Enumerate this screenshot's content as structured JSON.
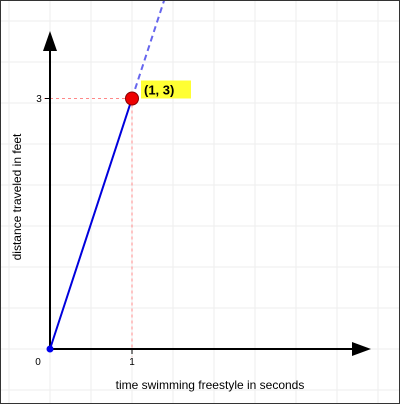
{
  "chart_data": {
    "type": "line",
    "xlabel": "time swimming freestyle in seconds",
    "ylabel": "distance traveled in feet",
    "xlim": [
      0,
      4
    ],
    "ylim": [
      0,
      4
    ],
    "x_ticks": [
      {
        "value": 0,
        "label": "0"
      },
      {
        "value": 1,
        "label": "1"
      }
    ],
    "y_ticks": [
      {
        "value": 3,
        "label": "3"
      }
    ],
    "grid": true,
    "series": [
      {
        "style": "solid",
        "color": "#0000dd",
        "points": [
          [
            0,
            0
          ],
          [
            1,
            3
          ]
        ]
      },
      {
        "style": "dashed",
        "color": "#6666ee",
        "points": [
          [
            1,
            3
          ],
          [
            1.4,
            4.2
          ]
        ]
      }
    ],
    "highlight_point": {
      "x": 1,
      "y": 3,
      "label": "(1, 3)",
      "color": "#ee0000",
      "label_bg": "#ffff33"
    },
    "origin_point": {
      "x": 0,
      "y": 0,
      "color": "#0000ee"
    },
    "guide_color": "#ff8888"
  }
}
